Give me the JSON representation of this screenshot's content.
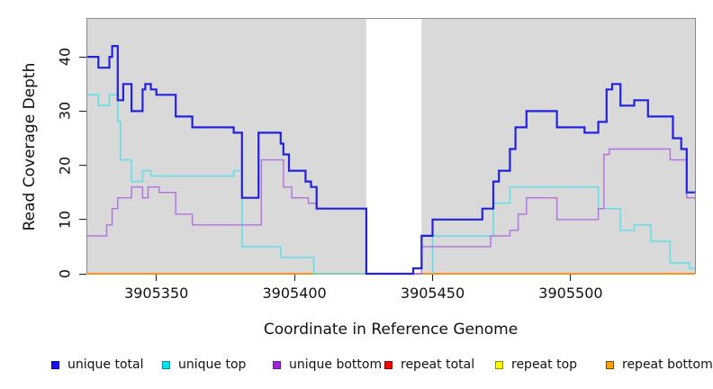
{
  "figure": {
    "y_axis_title": "Read Coverage Depth",
    "x_axis_title": "Coordinate in Reference Genome",
    "plot_background": "#D9D9D9",
    "panel_border": "#8A8A8A",
    "masked_band_color": "#FFFFFF"
  },
  "chart_data": {
    "type": "line",
    "subtype": "step",
    "title": "",
    "xlabel": "Coordinate in Reference Genome",
    "ylabel": "Read Coverage Depth",
    "xlim": [
      3905325,
      3905545
    ],
    "ylim": [
      0,
      47
    ],
    "x_ticks": [
      3905350,
      3905400,
      3905450,
      3905500
    ],
    "y_ticks": [
      0,
      10,
      20,
      30,
      40
    ],
    "grid": false,
    "legend_position": "bottom",
    "gap_region": {
      "x0": 3905426,
      "x1": 3905446
    },
    "draw_order": [
      4,
      5,
      3,
      1,
      2,
      0
    ],
    "series": [
      {
        "name": "unique total",
        "color": "#2222DD",
        "legend_fill": "#1414EE",
        "legend_border": "#000090",
        "width": 2.2,
        "segments": [
          [
            [
              3905325,
              40
            ],
            [
              3905329,
              38
            ],
            [
              3905333,
              40
            ],
            [
              3905334,
              42
            ],
            [
              3905336,
              32
            ],
            [
              3905338,
              35
            ],
            [
              3905341,
              30
            ],
            [
              3905345,
              34
            ],
            [
              3905346,
              35
            ],
            [
              3905348,
              34
            ],
            [
              3905350,
              33
            ],
            [
              3905357,
              29
            ],
            [
              3905363,
              27
            ],
            [
              3905378,
              26
            ],
            [
              3905381,
              14
            ],
            [
              3905387,
              26
            ],
            [
              3905395,
              24
            ],
            [
              3905396,
              22
            ],
            [
              3905398,
              19
            ],
            [
              3905404,
              17
            ],
            [
              3905406,
              16
            ],
            [
              3905408,
              12
            ],
            [
              3905426,
              0
            ],
            [
              3905443,
              1
            ],
            [
              3905446,
              7
            ],
            [
              3905450,
              10
            ],
            [
              3905468,
              12
            ],
            [
              3905472,
              17
            ],
            [
              3905474,
              19
            ],
            [
              3905478,
              23
            ],
            [
              3905480,
              27
            ],
            [
              3905484,
              30
            ],
            [
              3905495,
              27
            ],
            [
              3905505,
              26
            ],
            [
              3905510,
              28
            ],
            [
              3905513,
              34
            ],
            [
              3905515,
              35
            ],
            [
              3905518,
              31
            ],
            [
              3905523,
              32
            ],
            [
              3905528,
              29
            ],
            [
              3905537,
              25
            ],
            [
              3905540,
              23
            ],
            [
              3905542,
              15
            ],
            [
              3905545,
              15
            ]
          ]
        ]
      },
      {
        "name": "unique top",
        "color": "#55DFEE",
        "legend_fill": "#00E5EE",
        "legend_border": "#008B9B",
        "width": 1.4,
        "segments": [
          [
            [
              3905325,
              33
            ],
            [
              3905329,
              31
            ],
            [
              3905333,
              33
            ],
            [
              3905336,
              28
            ],
            [
              3905337,
              21
            ],
            [
              3905341,
              17
            ],
            [
              3905345,
              19
            ],
            [
              3905348,
              18
            ],
            [
              3905378,
              19
            ],
            [
              3905381,
              5
            ],
            [
              3905395,
              3
            ],
            [
              3905407,
              0
            ],
            [
              3905426,
              0
            ]
          ],
          [
            [
              3905450,
              0
            ],
            [
              3905450,
              7
            ],
            [
              3905472,
              13
            ],
            [
              3905478,
              16
            ],
            [
              3905510,
              12
            ],
            [
              3905518,
              8
            ],
            [
              3905523,
              9
            ],
            [
              3905529,
              6
            ],
            [
              3905536,
              2
            ],
            [
              3905543,
              1
            ],
            [
              3905545,
              1
            ]
          ]
        ]
      },
      {
        "name": "unique bottom",
        "color": "#B26FE0",
        "legend_fill": "#A020E0",
        "legend_border": "#5E1C8E",
        "width": 1.4,
        "segments": [
          [
            [
              3905325,
              7
            ],
            [
              3905332,
              9
            ],
            [
              3905334,
              12
            ],
            [
              3905336,
              14
            ],
            [
              3905341,
              16
            ],
            [
              3905345,
              14
            ],
            [
              3905347,
              16
            ],
            [
              3905351,
              15
            ],
            [
              3905357,
              11
            ],
            [
              3905363,
              9
            ],
            [
              3905388,
              21
            ],
            [
              3905396,
              16
            ],
            [
              3905399,
              14
            ],
            [
              3905405,
              13
            ],
            [
              3905408,
              12
            ],
            [
              3905426,
              0
            ],
            [
              3905446,
              5
            ],
            [
              3905471,
              7
            ],
            [
              3905478,
              8
            ],
            [
              3905481,
              11
            ],
            [
              3905484,
              14
            ],
            [
              3905495,
              10
            ],
            [
              3905510,
              12
            ],
            [
              3905512,
              22
            ],
            [
              3905514,
              23
            ],
            [
              3905536,
              21
            ],
            [
              3905542,
              14
            ],
            [
              3905545,
              14
            ]
          ]
        ]
      },
      {
        "name": "repeat total",
        "color": "#E03030",
        "legend_fill": "#FF0000",
        "legend_border": "#8B0000",
        "width": 1.6,
        "segments": [
          [
            [
              3905443,
              0
            ],
            [
              3905446,
              0
            ]
          ]
        ]
      },
      {
        "name": "repeat top",
        "color": "#FFFF00",
        "legend_fill": "#FFFF00",
        "legend_border": "#8B8B00",
        "width": 1.6,
        "segments": [
          [
            [
              3905325,
              0
            ],
            [
              3905426,
              0
            ]
          ],
          [
            [
              3905446,
              0
            ],
            [
              3905545,
              0
            ]
          ]
        ]
      },
      {
        "name": "repeat bottom",
        "color": "#FF9015",
        "legend_fill": "#FFA010",
        "legend_border": "#7A4A00",
        "width": 2,
        "segments": [
          [
            [
              3905325,
              0
            ],
            [
              3905426,
              0
            ]
          ],
          [
            [
              3905446,
              0
            ],
            [
              3905545,
              0
            ]
          ]
        ]
      }
    ]
  }
}
